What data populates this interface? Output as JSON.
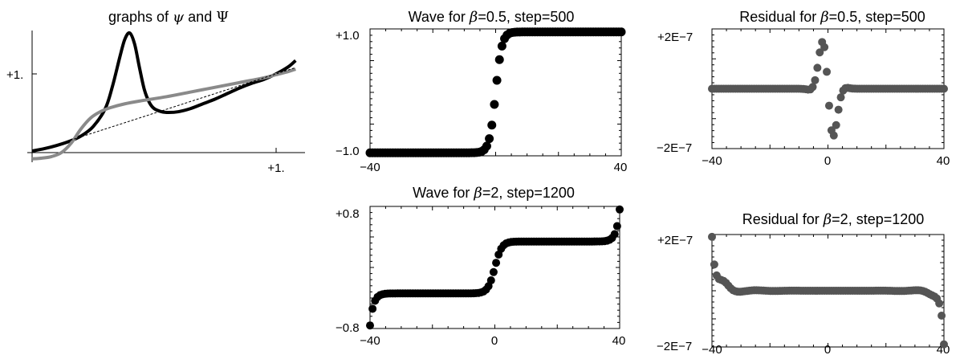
{
  "colors": {
    "dark_points": "#000000",
    "gray_points": "#555555",
    "psi_curve": "#000000",
    "Psi_curve": "#8a8a8a",
    "diagonal": "#000000"
  },
  "chart_data": [
    {
      "id": "psi",
      "type": "line",
      "title_prefix": "graphs of ",
      "title_sym1": "ψ",
      "title_mid": " and ",
      "title_sym2": "Ψ",
      "x_tick_label": "+1.",
      "y_tick_label": "+1.",
      "xlim": [
        -0.02,
        1.08
      ],
      "ylim": [
        -0.08,
        1.6
      ],
      "grid": false,
      "series": [
        {
          "role": "psi",
          "color": "#000000",
          "x": [
            0,
            0.05,
            0.1,
            0.15,
            0.2,
            0.25,
            0.3,
            0.33,
            0.36,
            0.38,
            0.4,
            0.42,
            0.44,
            0.46,
            0.48,
            0.5,
            0.53,
            0.56,
            0.6,
            0.65,
            0.7,
            0.75,
            0.8,
            0.85,
            0.9,
            0.95,
            1.0,
            1.05,
            1.08
          ],
          "y": [
            0.02,
            0.05,
            0.09,
            0.14,
            0.21,
            0.33,
            0.56,
            0.85,
            1.22,
            1.44,
            1.52,
            1.38,
            1.08,
            0.8,
            0.64,
            0.56,
            0.52,
            0.51,
            0.52,
            0.56,
            0.62,
            0.68,
            0.75,
            0.82,
            0.88,
            0.93,
            1.0,
            1.09,
            1.17
          ]
        },
        {
          "role": "Psi",
          "color": "#8a8a8a",
          "x": [
            0,
            0.04,
            0.08,
            0.12,
            0.16,
            0.2,
            0.24,
            0.28,
            0.32,
            0.38,
            0.45,
            0.55,
            0.65,
            0.75,
            0.85,
            0.95,
            1.0,
            1.05,
            1.08
          ],
          "y": [
            -0.08,
            -0.07,
            -0.05,
            0.0,
            0.12,
            0.3,
            0.44,
            0.52,
            0.57,
            0.62,
            0.66,
            0.71,
            0.77,
            0.83,
            0.89,
            0.95,
            0.99,
            1.03,
            1.06
          ]
        },
        {
          "role": "diagonal",
          "color": "#000000",
          "dashed": true,
          "x": [
            0,
            1.08
          ],
          "y": [
            0,
            1.08
          ]
        }
      ]
    },
    {
      "id": "wave1",
      "type": "scatter",
      "title_prefix": "Wave for ",
      "title_sym": "β",
      "title_suffix": "=0.5, step=500",
      "y_ticks": [
        "+1.0",
        "−1.0"
      ],
      "y_tick_values": [
        1.0,
        -1.0
      ],
      "x_ticks": [
        "−40",
        "40"
      ],
      "x_tick_values": [
        -40,
        40
      ],
      "xlim": [
        -40,
        40
      ],
      "ylim": [
        -1.05,
        1.05
      ],
      "color": "#000000",
      "series": [
        {
          "formula": "tanh(0.5x)"
        }
      ]
    },
    {
      "id": "res1",
      "type": "scatter",
      "title_prefix": "Residual for ",
      "title_sym": "β",
      "title_suffix": "=0.5, step=500",
      "y_ticks": [
        "+2E−7",
        "−2E−7"
      ],
      "y_tick_values": [
        2e-07,
        -2e-07
      ],
      "x_ticks": [
        "−40",
        "0",
        "40"
      ],
      "x_tick_values": [
        -40,
        0,
        40
      ],
      "xlim": [
        -40,
        40
      ],
      "ylim": [
        -2e-07,
        2e-07
      ],
      "color": "#555555",
      "series": [
        {
          "formula": "localized oscillation near 0"
        }
      ]
    },
    {
      "id": "wave2",
      "type": "scatter",
      "title_prefix": "Wave for ",
      "title_sym": "β",
      "title_suffix": "=2, step=1200",
      "y_ticks": [
        "+0.8",
        "−0.8"
      ],
      "y_tick_values": [
        0.8,
        -0.8
      ],
      "x_ticks": [
        "−40",
        "0",
        "40"
      ],
      "x_tick_values": [
        -40,
        0,
        40
      ],
      "xlim": [
        -40,
        40
      ],
      "ylim": [
        -0.8,
        0.8
      ],
      "color": "#000000",
      "series": [
        {
          "formula": "0.33·tanh(0.5x) + edge growth"
        }
      ]
    },
    {
      "id": "res2",
      "type": "scatter",
      "title_prefix": "Residual for ",
      "title_sym": "β",
      "title_suffix": "=2, step=1200",
      "y_ticks": [
        "+2E−7",
        "−2E−7"
      ],
      "y_tick_values": [
        2e-07,
        -2e-07
      ],
      "x_ticks": [
        "−40",
        "0",
        "40"
      ],
      "x_tick_values": [
        -40,
        0,
        40
      ],
      "xlim": [
        -40,
        40
      ],
      "ylim": [
        -2e-07,
        2e-07
      ],
      "color": "#555555",
      "series": [
        {
          "formula": "small edge oscillation"
        }
      ]
    }
  ]
}
